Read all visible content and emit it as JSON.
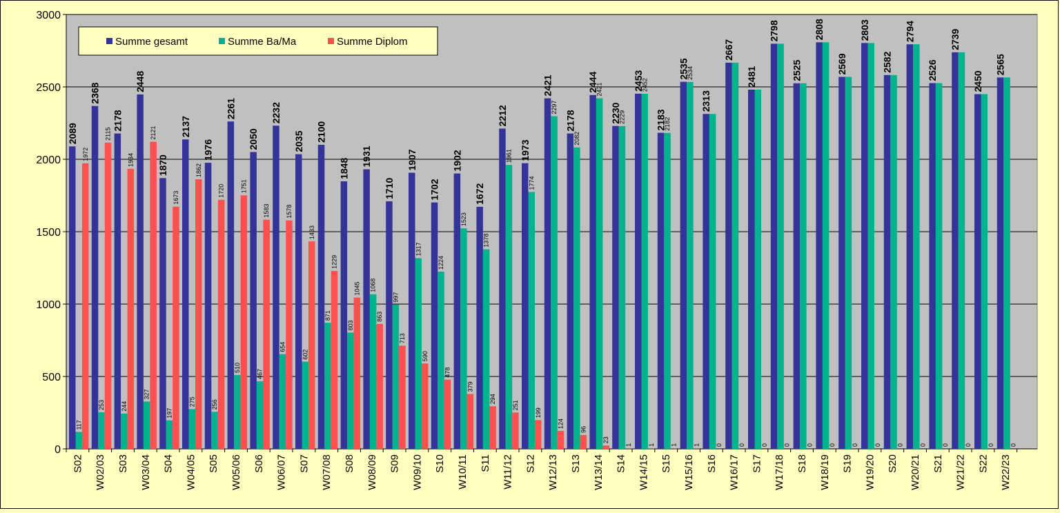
{
  "chart_data": {
    "type": "bar",
    "title": "",
    "xlabel": "",
    "ylabel": "",
    "ylim": [
      0,
      3000
    ],
    "yticks": [
      "0",
      "500",
      "1000",
      "1500",
      "2000",
      "2500",
      "3000"
    ],
    "grid": true,
    "legend_position": "top-left",
    "categories": [
      "S02",
      "W02/03",
      "S03",
      "W03/04",
      "S04",
      "W04/05",
      "S05",
      "W05/06",
      "S06",
      "W06/07",
      "S07",
      "W07/08",
      "S08",
      "W08/09",
      "S09",
      "W09/10",
      "S10",
      "W10/11",
      "S11",
      "W11/12",
      "S12",
      "W12/13",
      "S13",
      "W13/14",
      "S14",
      "W14/15",
      "S15",
      "W15/16",
      "S16",
      "W16/17",
      "S17",
      "W17/18",
      "S18",
      "W18/19",
      "S19",
      "W19/20",
      "S20",
      "W20/21",
      "S21",
      "W21/22",
      "S22",
      "W22/23"
    ],
    "series": [
      {
        "name": "Summe gesamt",
        "color": "#333399",
        "values": [
          2089,
          2368,
          2178,
          2448,
          1870,
          2137,
          1976,
          2261,
          2050,
          2232,
          2035,
          2100,
          1848,
          1931,
          1710,
          1907,
          1702,
          1902,
          1672,
          2212,
          1973,
          2421,
          2178,
          2444,
          2230,
          2453,
          2183,
          2535,
          2313,
          2667,
          2481,
          2798,
          2525,
          2808,
          2569,
          2803,
          2582,
          2794,
          2526,
          2739,
          2450,
          2565
        ]
      },
      {
        "name": "Summe Ba/Ma",
        "color": "#00b38f",
        "values": [
          117,
          253,
          244,
          327,
          197,
          275,
          256,
          510,
          467,
          654,
          602,
          871,
          803,
          1068,
          997,
          1317,
          1224,
          1523,
          1378,
          1961,
          1774,
          2297,
          2082,
          2421,
          2229,
          2452,
          2182,
          2534,
          2313,
          2667,
          2481,
          2798,
          2525,
          2808,
          2569,
          2803,
          2582,
          2794,
          2526,
          2739,
          2450,
          2565
        ],
        "labels": [
          "117",
          "253",
          "244",
          "327",
          "197",
          "275",
          "256",
          "510",
          "467",
          "654",
          "602",
          "871",
          "803",
          "1068",
          "997",
          "1317",
          "1224",
          "1523",
          "1378",
          "1961",
          "1774",
          "2297",
          "2082",
          "2421",
          "2229",
          "2452",
          "2182",
          "2534",
          "",
          "",
          "",
          "",
          "",
          "",
          "",
          "",
          "",
          "",
          "",
          "",
          "",
          ""
        ]
      },
      {
        "name": "Summe Diplom",
        "color": "#ff5050",
        "values": [
          1972,
          2115,
          1934,
          2121,
          1673,
          1862,
          1720,
          1751,
          1583,
          1578,
          1433,
          1229,
          1045,
          863,
          713,
          590,
          478,
          379,
          294,
          251,
          199,
          124,
          96,
          23,
          1,
          1,
          1,
          1,
          0,
          0,
          0,
          0,
          0,
          0,
          0,
          0,
          0,
          0,
          0,
          0,
          0,
          0
        ]
      }
    ]
  }
}
